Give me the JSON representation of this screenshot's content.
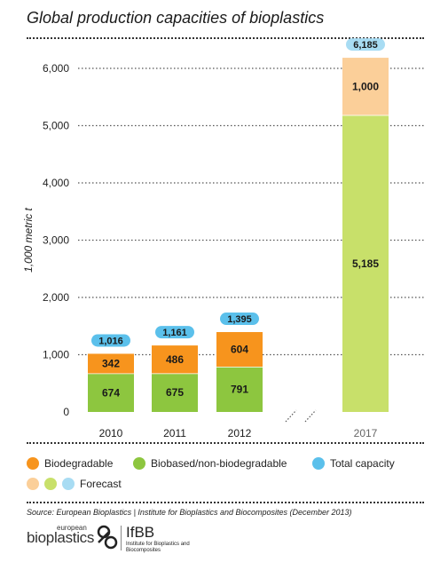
{
  "title": "Global production capacities of bioplastics",
  "chart_data": {
    "type": "bar",
    "stacked": true,
    "ylabel": "1,000 metric t",
    "ylim": [
      0,
      6000
    ],
    "yticks": [
      "0",
      "1,000",
      "2,000",
      "3,000",
      "4,000",
      "5,000",
      "6,000"
    ],
    "ytick_values": [
      0,
      1000,
      2000,
      3000,
      4000,
      5000,
      6000
    ],
    "grid": true,
    "categories": [
      "2010",
      "2011",
      "2012",
      "2017"
    ],
    "forecast": [
      false,
      false,
      false,
      true
    ],
    "series": [
      {
        "name": "Biobased/non-biodegradable",
        "values": [
          674,
          675,
          791,
          5185
        ],
        "labels": [
          "674",
          "675",
          "791",
          "5,185"
        ]
      },
      {
        "name": "Biodegradable",
        "values": [
          342,
          486,
          604,
          1000
        ],
        "labels": [
          "342",
          "486",
          "604",
          "1,000"
        ]
      }
    ],
    "totals": [
      1016,
      1161,
      1395,
      6185
    ],
    "total_labels": [
      "1,016",
      "1,161",
      "1,395",
      "6,185"
    ],
    "axis_break": true
  },
  "colors": {
    "biodegradable": "#f7941d",
    "biobased": "#8dc63f",
    "total": "#5bc0eb",
    "biodegradable_forecast": "#fbcf99",
    "biobased_forecast": "#c8e06a",
    "total_forecast": "#a8dcf3"
  },
  "legend": {
    "biodegradable": "Biodegradable",
    "biobased": "Biobased/non-biodegradable",
    "total": "Total capacity",
    "forecast": "Forecast"
  },
  "source": "Source: European Bioplastics | Institute for Bioplastics and Biocomposites (December 2013)",
  "logos": {
    "eb_small": "european",
    "eb_big": "bioplastics",
    "ifbb_name": "IfBB",
    "ifbb_sub": "Institute for Bioplastics and Biocomposites"
  }
}
